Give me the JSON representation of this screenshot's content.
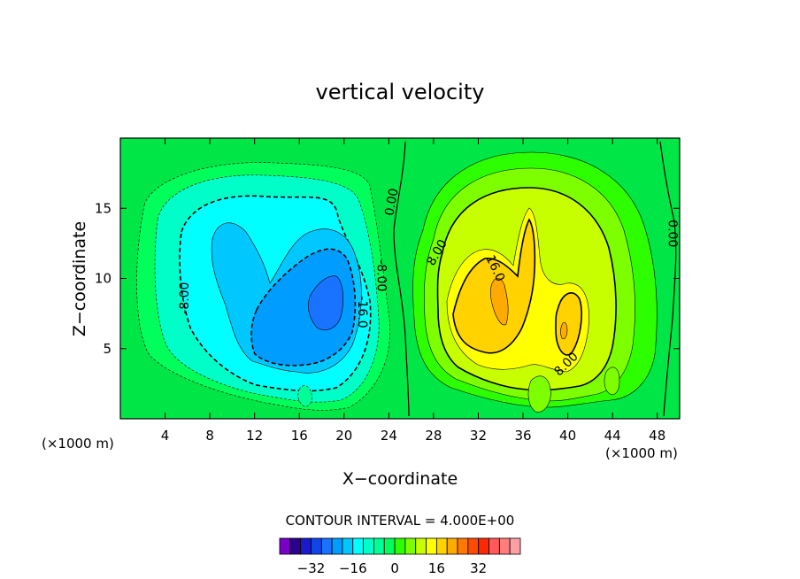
{
  "chart_data": {
    "type": "heatmap",
    "title": "vertical velocity",
    "xlabel": "X−coordinate",
    "ylabel": "Z−coordinate",
    "x_unit_left": "(×1000 m)",
    "x_unit_right": "(×1000 m)",
    "xlim": [
      0,
      50
    ],
    "ylim": [
      0,
      20
    ],
    "xticks": [
      4,
      8,
      12,
      16,
      20,
      24,
      28,
      32,
      36,
      40,
      44,
      48
    ],
    "yticks": [
      5,
      10,
      15
    ],
    "contour_interval_text": "CONTOUR INTERVAL = 4.000E+00",
    "contour_labels": [
      {
        "text": "0.00",
        "x": 24.6,
        "y": 15.4,
        "rotate": -80
      },
      {
        "text": "0.00",
        "x": 49.0,
        "y": 13.2,
        "rotate": 90
      },
      {
        "text": "-8.00",
        "x": 6.1,
        "y": 8.6,
        "rotate": -90
      },
      {
        "text": "-8.00",
        "x": 23.0,
        "y": 10.2,
        "rotate": 90
      },
      {
        "text": "-16.0",
        "x": 21.3,
        "y": 7.6,
        "rotate": 90
      },
      {
        "text": "8.00",
        "x": 28.6,
        "y": 11.7,
        "rotate": -60
      },
      {
        "text": "8.00",
        "x": 40.1,
        "y": 3.7,
        "rotate": -45
      },
      {
        "text": "16.0",
        "x": 33.2,
        "y": 10.6,
        "rotate": 65
      }
    ],
    "colorbar": {
      "tick_labels": [
        "−32",
        "−16",
        "0",
        "16",
        "32"
      ],
      "tick_values": [
        -32,
        -16,
        0,
        16,
        32
      ],
      "colors": [
        "#7a00c8",
        "#2c008e",
        "#1a1acc",
        "#0f46e8",
        "#1a73ff",
        "#009cff",
        "#00c8ff",
        "#00ffff",
        "#00ffc8",
        "#00ff96",
        "#00ff5a",
        "#2dff00",
        "#7dff00",
        "#c8ff00",
        "#ffff00",
        "#ffd200",
        "#ffaa00",
        "#ff7800",
        "#ff4b00",
        "#ff2800",
        "#ff5a5a",
        "#ff7d7d",
        "#ff9fa5"
      ]
    },
    "field": {
      "background_color": "#00e646",
      "positive_max": 28,
      "negative_min": -20
    }
  }
}
